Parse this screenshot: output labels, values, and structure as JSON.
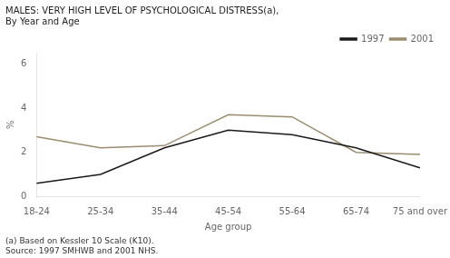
{
  "chart_data": {
    "type": "line",
    "title": "MALES: VERY HIGH LEVEL OF PSYCHOLOGICAL DISTRESS(a),",
    "subtitle": "By Year and Age",
    "x_label": "Age group",
    "y_label": "%",
    "annotations": [
      "(a) Based on Kessler 10 Scale (K10).",
      "Source: 1997 SMHWB and 2001 NHS."
    ],
    "categories": [
      "18-24",
      "25-34",
      "35-44",
      "45-54",
      "55-64",
      "65-74",
      "75 and over"
    ],
    "series": [
      {
        "name": "1997",
        "color": "#1a1a1a",
        "values": [
          0.6,
          1.0,
          2.2,
          3.0,
          2.8,
          2.2,
          1.3
        ]
      },
      {
        "name": "2001",
        "color": "#9b8c6e",
        "values": [
          2.7,
          2.2,
          2.3,
          3.7,
          3.6,
          2.0,
          1.9
        ]
      }
    ],
    "ylim": [
      0,
      6.5
    ],
    "yticks": [
      0,
      2,
      4,
      6
    ],
    "grid": false,
    "legend": "upper right"
  }
}
